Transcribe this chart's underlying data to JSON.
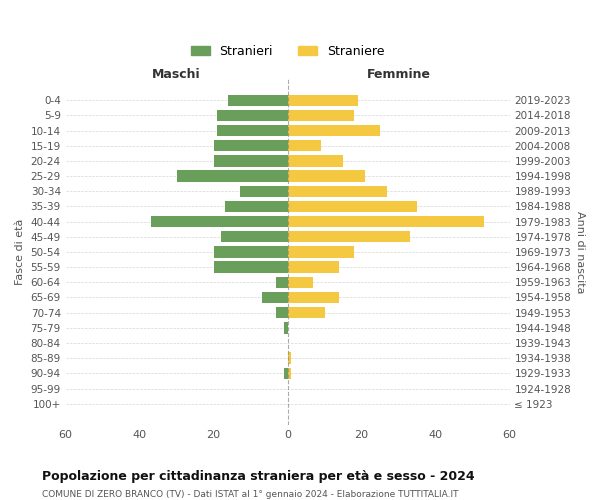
{
  "age_groups": [
    "100+",
    "95-99",
    "90-94",
    "85-89",
    "80-84",
    "75-79",
    "70-74",
    "65-69",
    "60-64",
    "55-59",
    "50-54",
    "45-49",
    "40-44",
    "35-39",
    "30-34",
    "25-29",
    "20-24",
    "15-19",
    "10-14",
    "5-9",
    "0-4"
  ],
  "birth_years": [
    "≤ 1923",
    "1924-1928",
    "1929-1933",
    "1934-1938",
    "1939-1943",
    "1944-1948",
    "1949-1953",
    "1954-1958",
    "1959-1963",
    "1964-1968",
    "1969-1973",
    "1974-1978",
    "1979-1983",
    "1984-1988",
    "1989-1993",
    "1994-1998",
    "1999-2003",
    "2004-2008",
    "2009-2013",
    "2014-2018",
    "2019-2023"
  ],
  "maschi": [
    0,
    0,
    1,
    0,
    0,
    1,
    3,
    7,
    3,
    20,
    20,
    18,
    37,
    17,
    13,
    30,
    20,
    20,
    19,
    19,
    16
  ],
  "femmine": [
    0,
    0,
    1,
    1,
    0,
    0,
    10,
    14,
    7,
    14,
    18,
    33,
    53,
    35,
    27,
    21,
    15,
    9,
    25,
    18,
    19
  ],
  "color_maschi": "#6a9e5b",
  "color_femmine": "#f5c842",
  "title": "Popolazione per cittadinanza straniera per età e sesso - 2024",
  "subtitle": "COMUNE DI ZERO BRANCO (TV) - Dati ISTAT al 1° gennaio 2024 - Elaborazione TUTTITALIA.IT",
  "xlabel_left": "Maschi",
  "xlabel_right": "Femmine",
  "ylabel_left": "Fasce di età",
  "ylabel_right": "Anni di nascita",
  "legend_maschi": "Stranieri",
  "legend_femmine": "Straniere",
  "xlim": 60,
  "background_color": "#ffffff",
  "grid_color": "#cccccc"
}
